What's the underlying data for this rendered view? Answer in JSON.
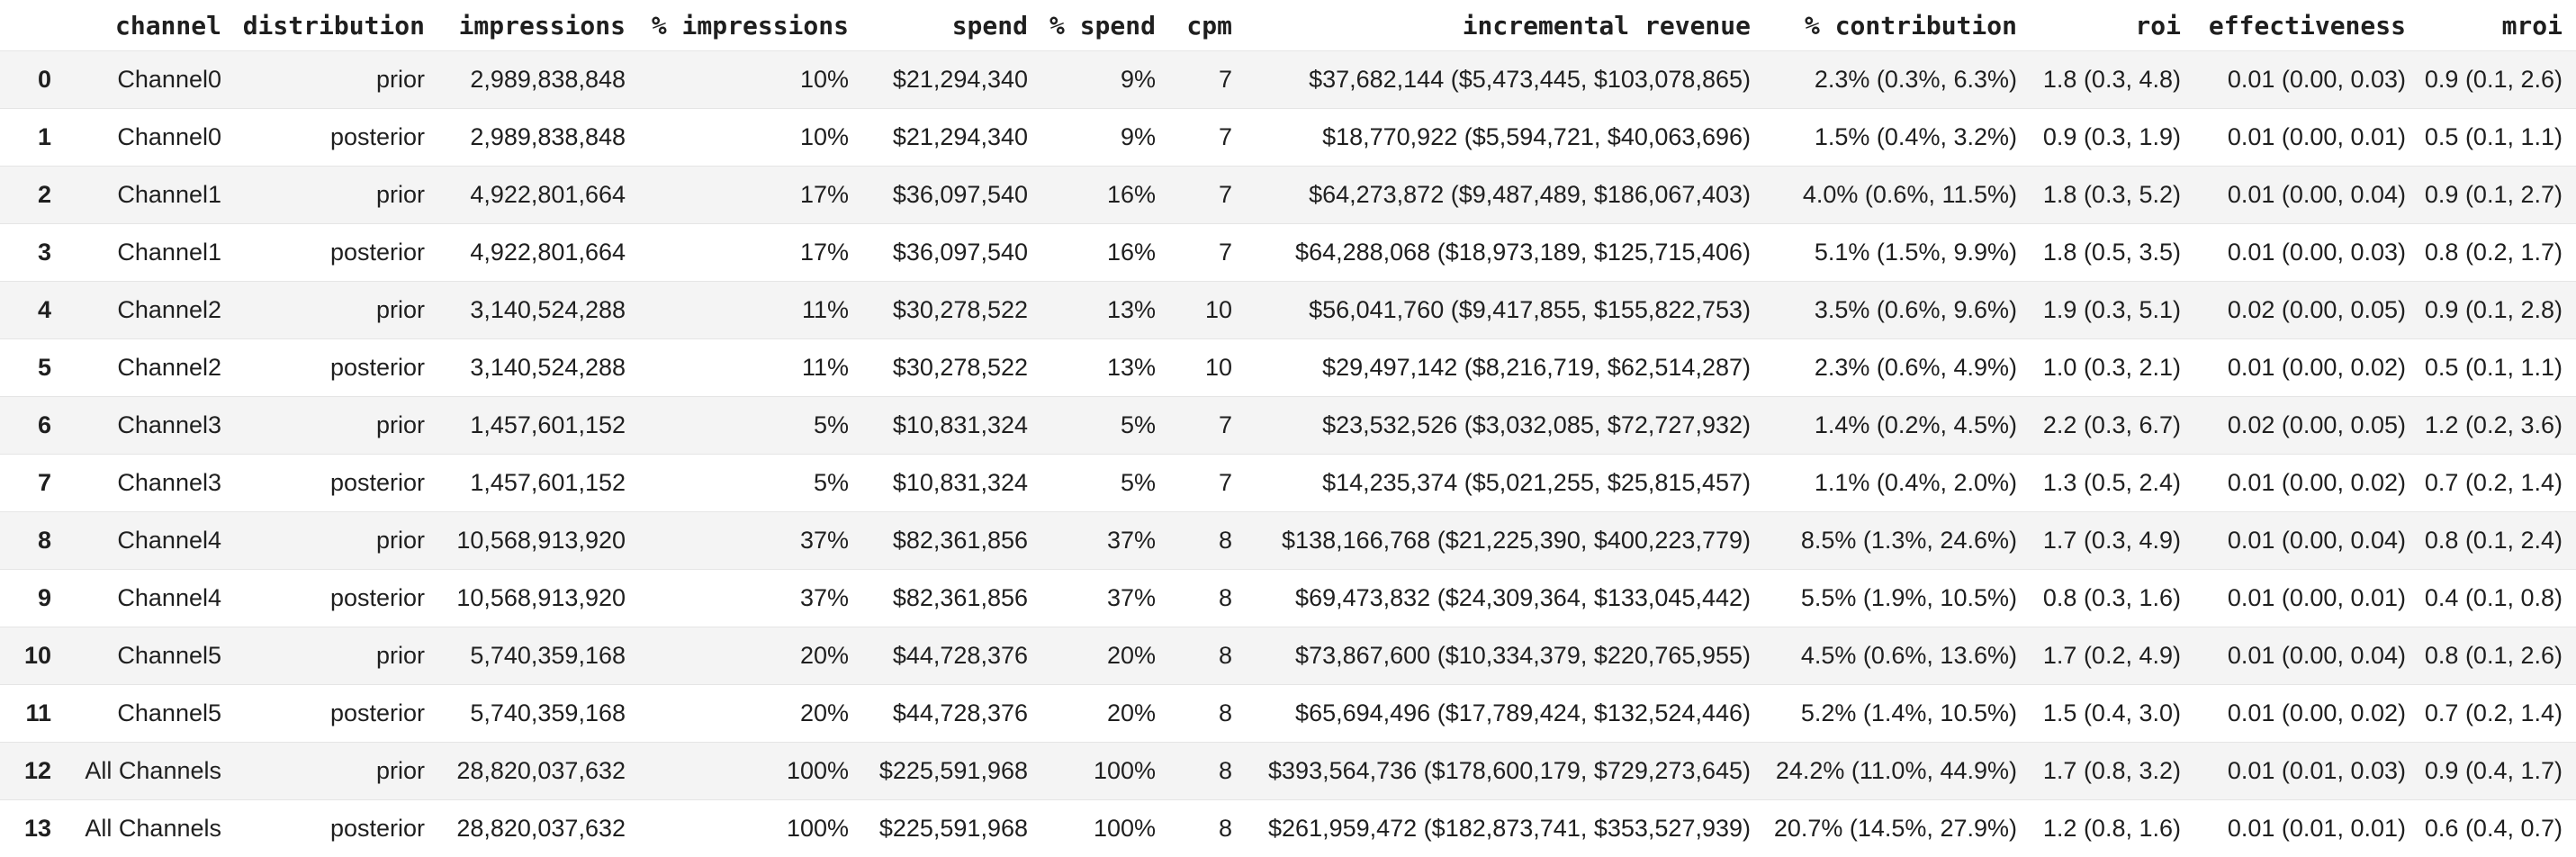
{
  "table": {
    "index_header": "",
    "columns": [
      "channel",
      "distribution",
      "impressions",
      "% impressions",
      "spend",
      "% spend",
      "cpm",
      "incremental revenue",
      "% contribution",
      "roi",
      "effectiveness",
      "mroi"
    ],
    "rows": [
      {
        "index": "0",
        "cells": [
          "Channel0",
          "prior",
          "2,989,838,848",
          "10%",
          "$21,294,340",
          "9%",
          "7",
          "$37,682,144 ($5,473,445, $103,078,865)",
          "2.3% (0.3%, 6.3%)",
          "1.8 (0.3, 4.8)",
          "0.01 (0.00, 0.03)",
          "0.9 (0.1, 2.6)"
        ]
      },
      {
        "index": "1",
        "cells": [
          "Channel0",
          "posterior",
          "2,989,838,848",
          "10%",
          "$21,294,340",
          "9%",
          "7",
          "$18,770,922 ($5,594,721, $40,063,696)",
          "1.5% (0.4%, 3.2%)",
          "0.9 (0.3, 1.9)",
          "0.01 (0.00, 0.01)",
          "0.5 (0.1, 1.1)"
        ]
      },
      {
        "index": "2",
        "cells": [
          "Channel1",
          "prior",
          "4,922,801,664",
          "17%",
          "$36,097,540",
          "16%",
          "7",
          "$64,273,872 ($9,487,489, $186,067,403)",
          "4.0% (0.6%, 11.5%)",
          "1.8 (0.3, 5.2)",
          "0.01 (0.00, 0.04)",
          "0.9 (0.1, 2.7)"
        ]
      },
      {
        "index": "3",
        "cells": [
          "Channel1",
          "posterior",
          "4,922,801,664",
          "17%",
          "$36,097,540",
          "16%",
          "7",
          "$64,288,068 ($18,973,189, $125,715,406)",
          "5.1% (1.5%, 9.9%)",
          "1.8 (0.5, 3.5)",
          "0.01 (0.00, 0.03)",
          "0.8 (0.2, 1.7)"
        ]
      },
      {
        "index": "4",
        "cells": [
          "Channel2",
          "prior",
          "3,140,524,288",
          "11%",
          "$30,278,522",
          "13%",
          "10",
          "$56,041,760 ($9,417,855, $155,822,753)",
          "3.5% (0.6%, 9.6%)",
          "1.9 (0.3, 5.1)",
          "0.02 (0.00, 0.05)",
          "0.9 (0.1, 2.8)"
        ]
      },
      {
        "index": "5",
        "cells": [
          "Channel2",
          "posterior",
          "3,140,524,288",
          "11%",
          "$30,278,522",
          "13%",
          "10",
          "$29,497,142 ($8,216,719, $62,514,287)",
          "2.3% (0.6%, 4.9%)",
          "1.0 (0.3, 2.1)",
          "0.01 (0.00, 0.02)",
          "0.5 (0.1, 1.1)"
        ]
      },
      {
        "index": "6",
        "cells": [
          "Channel3",
          "prior",
          "1,457,601,152",
          "5%",
          "$10,831,324",
          "5%",
          "7",
          "$23,532,526 ($3,032,085, $72,727,932)",
          "1.4% (0.2%, 4.5%)",
          "2.2 (0.3, 6.7)",
          "0.02 (0.00, 0.05)",
          "1.2 (0.2, 3.6)"
        ]
      },
      {
        "index": "7",
        "cells": [
          "Channel3",
          "posterior",
          "1,457,601,152",
          "5%",
          "$10,831,324",
          "5%",
          "7",
          "$14,235,374 ($5,021,255, $25,815,457)",
          "1.1% (0.4%, 2.0%)",
          "1.3 (0.5, 2.4)",
          "0.01 (0.00, 0.02)",
          "0.7 (0.2, 1.4)"
        ]
      },
      {
        "index": "8",
        "cells": [
          "Channel4",
          "prior",
          "10,568,913,920",
          "37%",
          "$82,361,856",
          "37%",
          "8",
          "$138,166,768 ($21,225,390, $400,223,779)",
          "8.5% (1.3%, 24.6%)",
          "1.7 (0.3, 4.9)",
          "0.01 (0.00, 0.04)",
          "0.8 (0.1, 2.4)"
        ]
      },
      {
        "index": "9",
        "cells": [
          "Channel4",
          "posterior",
          "10,568,913,920",
          "37%",
          "$82,361,856",
          "37%",
          "8",
          "$69,473,832 ($24,309,364, $133,045,442)",
          "5.5% (1.9%, 10.5%)",
          "0.8 (0.3, 1.6)",
          "0.01 (0.00, 0.01)",
          "0.4 (0.1, 0.8)"
        ]
      },
      {
        "index": "10",
        "cells": [
          "Channel5",
          "prior",
          "5,740,359,168",
          "20%",
          "$44,728,376",
          "20%",
          "8",
          "$73,867,600 ($10,334,379, $220,765,955)",
          "4.5% (0.6%, 13.6%)",
          "1.7 (0.2, 4.9)",
          "0.01 (0.00, 0.04)",
          "0.8 (0.1, 2.6)"
        ]
      },
      {
        "index": "11",
        "cells": [
          "Channel5",
          "posterior",
          "5,740,359,168",
          "20%",
          "$44,728,376",
          "20%",
          "8",
          "$65,694,496 ($17,789,424, $132,524,446)",
          "5.2% (1.4%, 10.5%)",
          "1.5 (0.4, 3.0)",
          "0.01 (0.00, 0.02)",
          "0.7 (0.2, 1.4)"
        ]
      },
      {
        "index": "12",
        "cells": [
          "All Channels",
          "prior",
          "28,820,037,632",
          "100%",
          "$225,591,968",
          "100%",
          "8",
          "$393,564,736 ($178,600,179, $729,273,645)",
          "24.2% (11.0%, 44.9%)",
          "1.7 (0.8, 3.2)",
          "0.01 (0.01, 0.03)",
          "0.9 (0.4, 1.7)"
        ]
      },
      {
        "index": "13",
        "cells": [
          "All Channels",
          "posterior",
          "28,820,037,632",
          "100%",
          "$225,591,968",
          "100%",
          "8",
          "$261,959,472 ($182,873,741, $353,527,939)",
          "20.7% (14.5%, 27.9%)",
          "1.2 (0.8, 1.6)",
          "0.01 (0.01, 0.01)",
          "0.6 (0.4, 0.7)"
        ]
      }
    ]
  },
  "colors": {
    "background": "#ffffff",
    "row_stripe": "#f4f4f4",
    "text": "#1f1f1f",
    "row_border": "#e5e5e5"
  },
  "chart_data": {
    "type": "table",
    "title": "",
    "columns": [
      "channel",
      "distribution",
      "impressions",
      "% impressions",
      "spend",
      "% spend",
      "cpm",
      "incremental revenue",
      "% contribution",
      "roi",
      "effectiveness",
      "mroi"
    ],
    "row_indices": [
      "0",
      "1",
      "2",
      "3",
      "4",
      "5",
      "6",
      "7",
      "8",
      "9",
      "10",
      "11",
      "12",
      "13"
    ],
    "rows": [
      [
        "Channel0",
        "prior",
        "2,989,838,848",
        "10%",
        "$21,294,340",
        "9%",
        "7",
        "$37,682,144 ($5,473,445, $103,078,865)",
        "2.3% (0.3%, 6.3%)",
        "1.8 (0.3, 4.8)",
        "0.01 (0.00, 0.03)",
        "0.9 (0.1, 2.6)"
      ],
      [
        "Channel0",
        "posterior",
        "2,989,838,848",
        "10%",
        "$21,294,340",
        "9%",
        "7",
        "$18,770,922 ($5,594,721, $40,063,696)",
        "1.5% (0.4%, 3.2%)",
        "0.9 (0.3, 1.9)",
        "0.01 (0.00, 0.01)",
        "0.5 (0.1, 1.1)"
      ],
      [
        "Channel1",
        "prior",
        "4,922,801,664",
        "17%",
        "$36,097,540",
        "16%",
        "7",
        "$64,273,872 ($9,487,489, $186,067,403)",
        "4.0% (0.6%, 11.5%)",
        "1.8 (0.3, 5.2)",
        "0.01 (0.00, 0.04)",
        "0.9 (0.1, 2.7)"
      ],
      [
        "Channel1",
        "posterior",
        "4,922,801,664",
        "17%",
        "$36,097,540",
        "16%",
        "7",
        "$64,288,068 ($18,973,189, $125,715,406)",
        "5.1% (1.5%, 9.9%)",
        "1.8 (0.5, 3.5)",
        "0.01 (0.00, 0.03)",
        "0.8 (0.2, 1.7)"
      ],
      [
        "Channel2",
        "prior",
        "3,140,524,288",
        "11%",
        "$30,278,522",
        "13%",
        "10",
        "$56,041,760 ($9,417,855, $155,822,753)",
        "3.5% (0.6%, 9.6%)",
        "1.9 (0.3, 5.1)",
        "0.02 (0.00, 0.05)",
        "0.9 (0.1, 2.8)"
      ],
      [
        "Channel2",
        "posterior",
        "3,140,524,288",
        "11%",
        "$30,278,522",
        "13%",
        "10",
        "$29,497,142 ($8,216,719, $62,514,287)",
        "2.3% (0.6%, 4.9%)",
        "1.0 (0.3, 2.1)",
        "0.01 (0.00, 0.02)",
        "0.5 (0.1, 1.1)"
      ],
      [
        "Channel3",
        "prior",
        "1,457,601,152",
        "5%",
        "$10,831,324",
        "5%",
        "7",
        "$23,532,526 ($3,032,085, $72,727,932)",
        "1.4% (0.2%, 4.5%)",
        "2.2 (0.3, 6.7)",
        "0.02 (0.00, 0.05)",
        "1.2 (0.2, 3.6)"
      ],
      [
        "Channel3",
        "posterior",
        "1,457,601,152",
        "5%",
        "$10,831,324",
        "5%",
        "7",
        "$14,235,374 ($5,021,255, $25,815,457)",
        "1.1% (0.4%, 2.0%)",
        "1.3 (0.5, 2.4)",
        "0.01 (0.00, 0.02)",
        "0.7 (0.2, 1.4)"
      ],
      [
        "Channel4",
        "prior",
        "10,568,913,920",
        "37%",
        "$82,361,856",
        "37%",
        "8",
        "$138,166,768 ($21,225,390, $400,223,779)",
        "8.5% (1.3%, 24.6%)",
        "1.7 (0.3, 4.9)",
        "0.01 (0.00, 0.04)",
        "0.8 (0.1, 2.4)"
      ],
      [
        "Channel4",
        "posterior",
        "10,568,913,920",
        "37%",
        "$82,361,856",
        "37%",
        "8",
        "$69,473,832 ($24,309,364, $133,045,442)",
        "5.5% (1.9%, 10.5%)",
        "0.8 (0.3, 1.6)",
        "0.01 (0.00, 0.01)",
        "0.4 (0.1, 0.8)"
      ],
      [
        "Channel5",
        "prior",
        "5,740,359,168",
        "20%",
        "$44,728,376",
        "20%",
        "8",
        "$73,867,600 ($10,334,379, $220,765,955)",
        "4.5% (0.6%, 13.6%)",
        "1.7 (0.2, 4.9)",
        "0.01 (0.00, 0.04)",
        "0.8 (0.1, 2.6)"
      ],
      [
        "Channel5",
        "posterior",
        "5,740,359,168",
        "20%",
        "$44,728,376",
        "20%",
        "8",
        "$65,694,496 ($17,789,424, $132,524,446)",
        "5.2% (1.4%, 10.5%)",
        "1.5 (0.4, 3.0)",
        "0.01 (0.00, 0.02)",
        "0.7 (0.2, 1.4)"
      ],
      [
        "All Channels",
        "prior",
        "28,820,037,632",
        "100%",
        "$225,591,968",
        "100%",
        "8",
        "$393,564,736 ($178,600,179, $729,273,645)",
        "24.2% (11.0%, 44.9%)",
        "1.7 (0.8, 3.2)",
        "0.01 (0.01, 0.03)",
        "0.9 (0.4, 1.7)"
      ],
      [
        "All Channels",
        "posterior",
        "28,820,037,632",
        "100%",
        "$225,591,968",
        "100%",
        "8",
        "$261,959,472 ($182,873,741, $353,527,939)",
        "20.7% (14.5%, 27.9%)",
        "1.2 (0.8, 1.6)",
        "0.01 (0.01, 0.01)",
        "0.6 (0.4, 0.7)"
      ]
    ]
  }
}
